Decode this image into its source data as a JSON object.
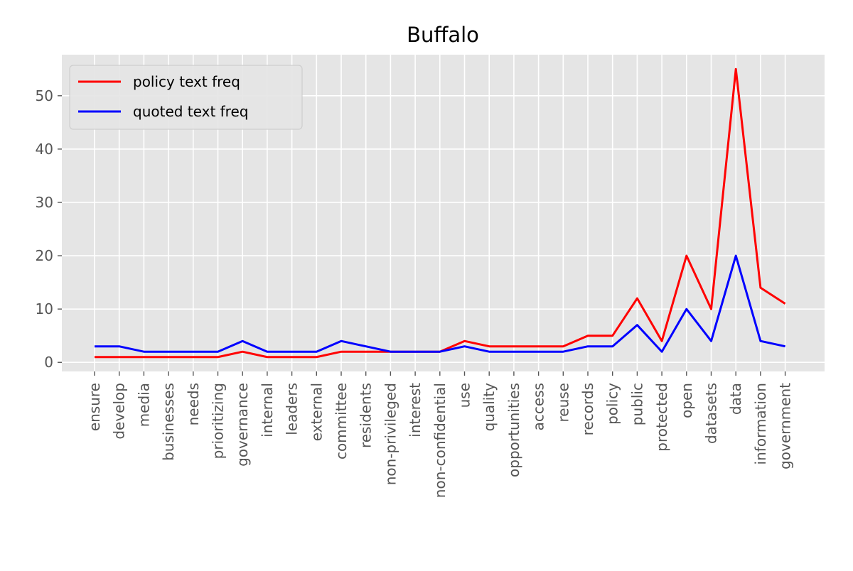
{
  "chart_data": {
    "type": "line",
    "title": "Buffalo",
    "xlabel": "",
    "ylabel": "",
    "categories": [
      "ensure",
      "develop",
      "media",
      "businesses",
      "needs",
      "prioritizing",
      "governance",
      "internal",
      "leaders",
      "external",
      "committee",
      "residents",
      "non-privileged",
      "interest",
      "non-confidential",
      "use",
      "quality",
      "opportunities",
      "access",
      "reuse",
      "records",
      "policy",
      "public",
      "protected",
      "open",
      "datasets",
      "data",
      "information",
      "government"
    ],
    "series": [
      {
        "name": "policy text freq",
        "color": "#ff0000",
        "values": [
          1,
          1,
          1,
          1,
          1,
          1,
          2,
          1,
          1,
          1,
          2,
          2,
          2,
          2,
          2,
          4,
          3,
          3,
          3,
          3,
          5,
          5,
          12,
          4,
          20,
          10,
          55,
          14,
          11
        ]
      },
      {
        "name": "quoted text freq",
        "color": "#0000ff",
        "values": [
          3,
          3,
          2,
          2,
          2,
          2,
          4,
          2,
          2,
          2,
          4,
          3,
          2,
          2,
          2,
          3,
          2,
          2,
          2,
          2,
          3,
          3,
          7,
          2,
          10,
          4,
          20,
          4,
          3
        ]
      }
    ],
    "yticks": [
      0,
      10,
      20,
      30,
      40,
      50
    ],
    "ylim": [
      -1.7,
      57.7
    ],
    "grid": true,
    "legend_position": "top-left",
    "background": "#e5e5e5"
  }
}
